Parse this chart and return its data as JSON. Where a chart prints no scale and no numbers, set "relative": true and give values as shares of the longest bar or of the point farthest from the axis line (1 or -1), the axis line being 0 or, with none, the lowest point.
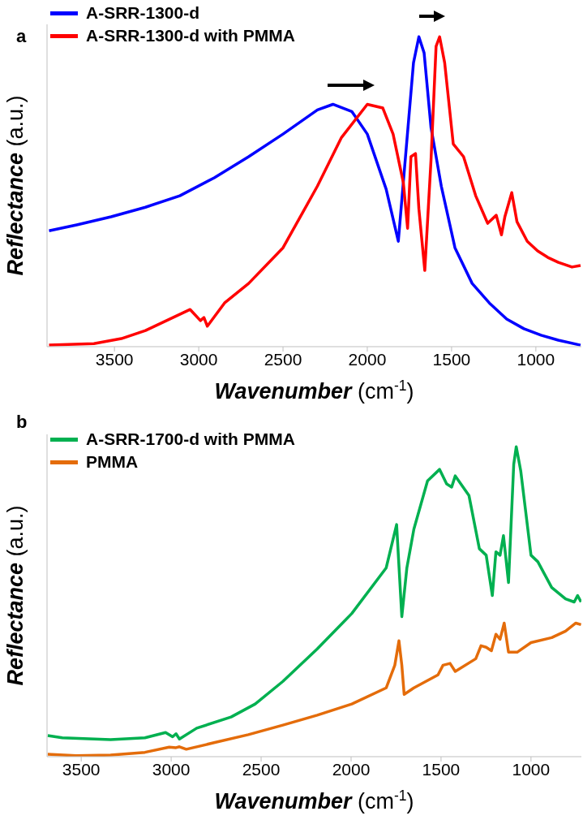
{
  "chart_data": [
    {
      "type": "line",
      "relative": true,
      "xlabel": "Wavenumber (cm$^{-1}$)",
      "ylabel": "Reflectance (a.u.)",
      "xlim": [
        3900,
        730
      ],
      "xticks": [
        3500,
        3000,
        2500,
        2000,
        1500,
        1000
      ],
      "legend": "top left",
      "marker": "none",
      "annotations": [
        "a"
      ],
      "series": [
        {
          "name": "A-SRR-1300-d",
          "color": "#0000ff",
          "x": [
            3888,
            3724,
            3520,
            3316,
            3112,
            2908,
            2704,
            2500,
            2296,
            2204,
            2092,
            2000,
            1888,
            1816,
            1726,
            1694,
            1663,
            1622,
            1561,
            1480,
            1378,
            1276,
            1173,
            1071,
            969,
            867,
            735
          ],
          "values": [
            0.374,
            0.393,
            0.419,
            0.45,
            0.487,
            0.545,
            0.613,
            0.686,
            0.764,
            0.782,
            0.759,
            0.686,
            0.508,
            0.34,
            0.916,
            1,
            0.948,
            0.707,
            0.518,
            0.319,
            0.204,
            0.141,
            0.089,
            0.058,
            0.037,
            0.021,
            0.005
          ]
        },
        {
          "name": "A-SRR-1300-d with PMMA",
          "color": "#ff0000",
          "x": [
            3888,
            3622,
            3459,
            3316,
            3051,
            2990,
            2969,
            2949,
            2847,
            2704,
            2500,
            2296,
            2153,
            2000,
            1908,
            1847,
            1786,
            1761,
            1741,
            1714,
            1694,
            1659,
            1622,
            1592,
            1571,
            1541,
            1490,
            1429,
            1357,
            1286,
            1235,
            1204,
            1184,
            1143,
            1112,
            1051,
            990,
            929,
            867,
            786,
            735
          ],
          "values": [
            0.005,
            0.01,
            0.026,
            0.052,
            0.12,
            0.084,
            0.094,
            0.066,
            0.141,
            0.204,
            0.319,
            0.518,
            0.675,
            0.782,
            0.77,
            0.686,
            0.529,
            0.382,
            0.613,
            0.623,
            0.445,
            0.246,
            0.602,
            0.969,
            1,
            0.916,
            0.654,
            0.613,
            0.487,
            0.398,
            0.424,
            0.361,
            0.419,
            0.497,
            0.403,
            0.34,
            0.309,
            0.288,
            0.272,
            0.257,
            0.262
          ]
        }
      ]
    },
    {
      "type": "line",
      "relative": true,
      "xlabel": "Wavenumber (cm$^{-1}$)",
      "ylabel": "Reflectance (a.u.)",
      "xlim": [
        3690,
        720
      ],
      "xticks": [
        3500,
        3000,
        2500,
        2000,
        1500,
        1000
      ],
      "legend": "top left",
      "marker": "none",
      "annotations": [
        "b"
      ],
      "series": [
        {
          "name": "A-SRR-1700-d with PMMA",
          "color": "#00b050",
          "x": [
            3686,
            3605,
            3337,
            3146,
            3031,
            2992,
            2973,
            2954,
            2858,
            2667,
            2533,
            2379,
            2188,
            1996,
            1805,
            1747,
            1718,
            1690,
            1651,
            1575,
            1508,
            1469,
            1441,
            1421,
            1345,
            1287,
            1249,
            1215,
            1195,
            1172,
            1153,
            1125,
            1096,
            1082,
            1057,
            1000,
            962,
            885,
            808,
            760,
            741,
            722
          ],
          "values": [
            0.068,
            0.061,
            0.055,
            0.061,
            0.078,
            0.064,
            0.074,
            0.057,
            0.092,
            0.128,
            0.17,
            0.243,
            0.348,
            0.462,
            0.609,
            0.749,
            0.452,
            0.609,
            0.734,
            0.89,
            0.927,
            0.88,
            0.87,
            0.906,
            0.843,
            0.671,
            0.65,
            0.52,
            0.661,
            0.65,
            0.713,
            0.562,
            0.943,
            1,
            0.922,
            0.65,
            0.629,
            0.546,
            0.509,
            0.499,
            0.52,
            0.499
          ]
        },
        {
          "name": "PMMA",
          "color": "#e46c0a",
          "x": [
            3686,
            3529,
            3337,
            3146,
            3011,
            2973,
            2954,
            2916,
            2762,
            2571,
            2379,
            2188,
            1996,
            1805,
            1757,
            1734,
            1718,
            1705,
            1651,
            1517,
            1489,
            1450,
            1421,
            1307,
            1278,
            1249,
            1220,
            1195,
            1172,
            1149,
            1125,
            1077,
            1000,
            885,
            808,
            751,
            722
          ],
          "values": [
            0.008,
            0.003,
            0.005,
            0.014,
            0.031,
            0.029,
            0.032,
            0.024,
            0.045,
            0.071,
            0.102,
            0.134,
            0.17,
            0.222,
            0.295,
            0.374,
            0.295,
            0.201,
            0.222,
            0.264,
            0.295,
            0.301,
            0.275,
            0.316,
            0.358,
            0.353,
            0.342,
            0.395,
            0.379,
            0.431,
            0.337,
            0.337,
            0.368,
            0.384,
            0.405,
            0.431,
            0.426
          ]
        }
      ]
    }
  ]
}
